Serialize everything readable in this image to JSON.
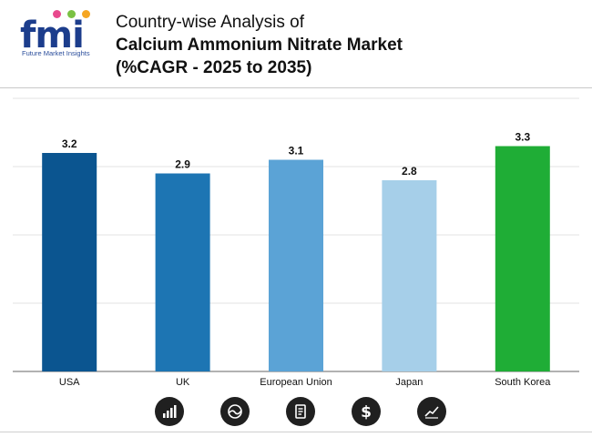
{
  "brand": {
    "logo_text": "fmi",
    "tagline": "Future Market Insights",
    "dot_colors": [
      "#e8498d",
      "#7ac143",
      "#f5a623"
    ]
  },
  "header": {
    "title_line1": "Country-wise Analysis of",
    "title_line2": "Calcium Ammonium Nitrate Market",
    "title_line3": "(%CAGR - 2025 to 2035)"
  },
  "chart_data": {
    "type": "bar",
    "title": "Country-wise Analysis of Calcium Ammonium Nitrate Market (%CAGR - 2025 to 2035)",
    "categories": [
      "USA",
      "UK",
      "European Union",
      "Japan",
      "South Korea"
    ],
    "values": [
      3.2,
      2.9,
      3.1,
      2.8,
      3.3
    ],
    "value_labels": [
      "3.2",
      "2.9",
      "3.1",
      "2.8",
      "3.3"
    ],
    "colors": [
      "#0b5590",
      "#1d75b3",
      "#5ba3d6",
      "#a6cfe9",
      "#1fad36"
    ],
    "xlabel": "",
    "ylabel": "",
    "ylim": [
      0,
      4
    ],
    "grid": true,
    "legend": "none"
  },
  "footer_icons": [
    "bar-chart-icon",
    "globe-icon",
    "report-icon",
    "dollar-icon",
    "trend-chart-icon"
  ]
}
